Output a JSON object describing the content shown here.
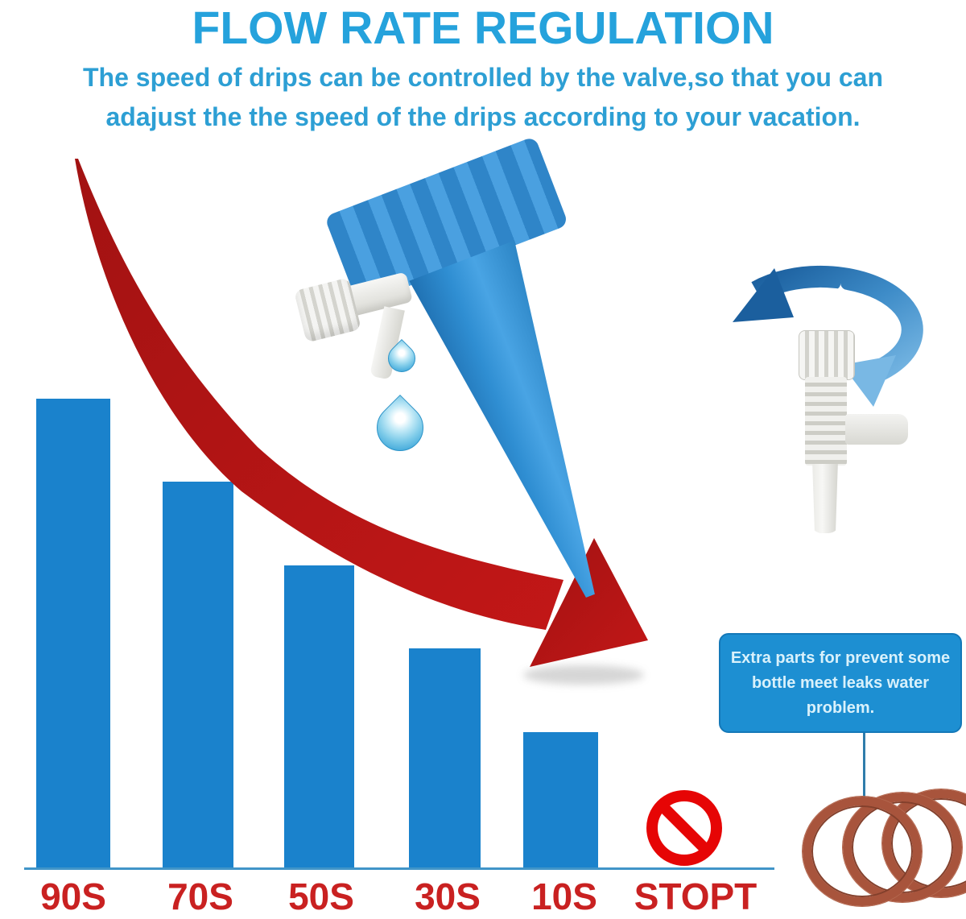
{
  "header": {
    "title": "FLOW RATE REGULATION",
    "subtitle_line1": "The speed of drips can be controlled by the valve,so that you can",
    "subtitle_line2": "adajust the the speed of the drips according to your vacation."
  },
  "chart_data": {
    "type": "bar",
    "categories": [
      "90S",
      "70S",
      "50S",
      "30S",
      "10S",
      "STOPT"
    ],
    "values": [
      90,
      70,
      50,
      30,
      10,
      0
    ],
    "title": "FLOW RATE REGULATION",
    "xlabel": "",
    "ylabel": "",
    "ylim": [
      0,
      100
    ],
    "grid": false,
    "legend": false,
    "bar_color": "#1a82cc",
    "axis_color": "#4195c8",
    "category_label_color": "#c92121",
    "annotations": [
      "red decreasing trend arrow across the bars",
      "prohibition sign shown above STOPT instead of a bar"
    ]
  },
  "callout": {
    "line1": "Extra parts for prevent some",
    "line2": "bottle meet leaks water",
    "line3": "problem.",
    "bg_color": "#1d8fd2",
    "text_color": "#d9f1fb"
  },
  "icons": {
    "prohibition_icon_color": "#e60505",
    "oring_count": 3,
    "oring_color": "#a8543c",
    "trend_arrow_color": "#b01414",
    "rotation_arrow_color": "#2e7cb8",
    "water_drop_count": 2
  },
  "colors": {
    "title_blue": "#25a2dc",
    "subtitle_blue": "#2d9fd4",
    "bar_blue": "#1a82cc",
    "spike_blue": "#2f8ed2",
    "valve_white": "#eeeeec"
  }
}
